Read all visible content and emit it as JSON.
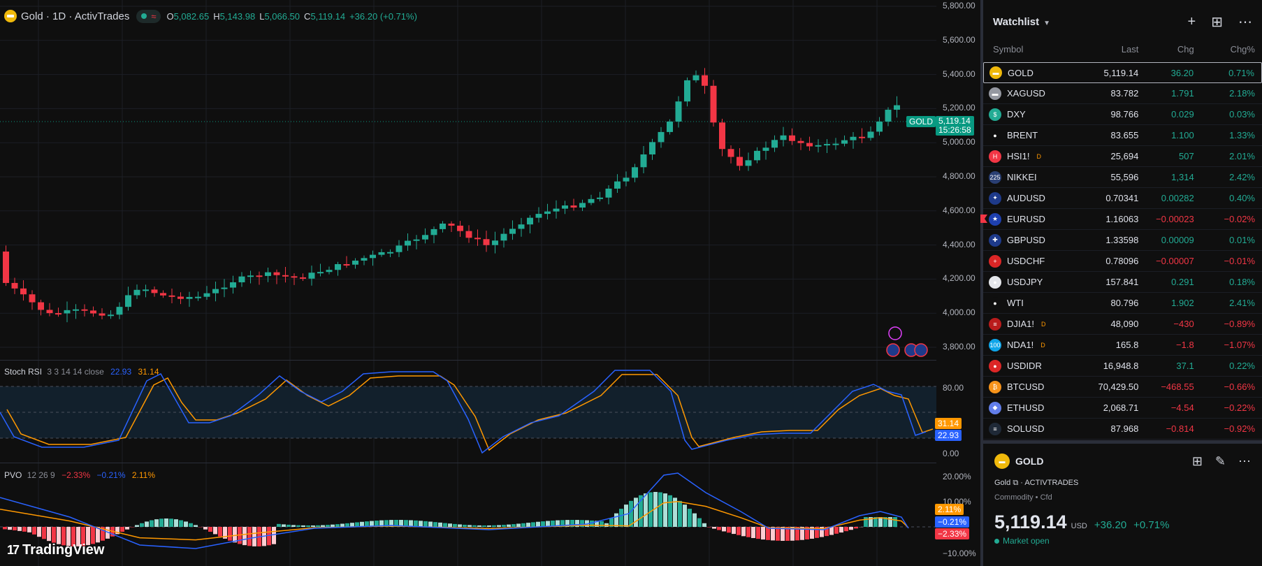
{
  "legend": {
    "title": "Gold · 1D · ActivTrades",
    "o_key": "O",
    "o": "5,082.65",
    "h_key": "H",
    "h": "5,143.98",
    "l_key": "L",
    "l": "5,066.50",
    "c_key": "C",
    "c": "5,119.14",
    "chg": "+36.20 (+0.71%)",
    "wave_icon": "≈"
  },
  "price_axis": {
    "labels": [
      "5,800.00",
      "5,600.00",
      "5,400.00",
      "5,200.00",
      "5,000.00",
      "4,800.00",
      "4,600.00",
      "4,400.00",
      "4,200.00",
      "4,000.00",
      "3,800.00"
    ],
    "last_tag_symbol": "GOLD",
    "last_price": "5,119.14",
    "countdown": "15:26:58"
  },
  "stoch": {
    "name": "Stoch RSI",
    "params": "3 3 14 14 close",
    "k": "22.93",
    "d": "31.14",
    "axis": [
      "80.00",
      "0.00"
    ]
  },
  "pvo": {
    "name": "PVO",
    "params": "12 26 9",
    "v1": "−2.33%",
    "v2": "−0.21%",
    "v3": "2.11%",
    "axis": [
      "20.00%",
      "10.00%",
      "−10.00%"
    ]
  },
  "branding": {
    "logo": "TradingView"
  },
  "colors": {
    "up": "#22ab94",
    "down": "#f23645",
    "blue": "#2962ff",
    "orange": "#ff9800"
  },
  "watchlist": {
    "title": "Watchlist",
    "columns": [
      "Symbol",
      "Last",
      "Chg",
      "Chg%"
    ],
    "rows": [
      {
        "symbol": "GOLD",
        "last": "5,119.14",
        "chg": "36.20",
        "pct": "0.71%",
        "dir": "pos",
        "icon": "gold-icon",
        "bg": "#f0b90b",
        "glyph": "▬"
      },
      {
        "symbol": "XAGUSD",
        "last": "83.782",
        "chg": "1.791",
        "pct": "2.18%",
        "dir": "pos",
        "icon": "silver-icon",
        "bg": "#9598a1",
        "glyph": "▬"
      },
      {
        "symbol": "DXY",
        "last": "98.766",
        "chg": "0.029",
        "pct": "0.03%",
        "dir": "pos",
        "icon": "dollar-icon",
        "bg": "#22ab94",
        "glyph": "$"
      },
      {
        "symbol": "BRENT",
        "last": "83.655",
        "chg": "1.100",
        "pct": "1.33%",
        "dir": "pos",
        "icon": "oil-drop-icon",
        "bg": "#0f0f0f",
        "glyph": "●"
      },
      {
        "symbol": "HSI1!",
        "last": "25,694",
        "chg": "507",
        "pct": "2.01%",
        "dir": "pos",
        "icon": "hsi-icon",
        "bg": "#f23645",
        "glyph": "H",
        "sup": "D"
      },
      {
        "symbol": "NIKKEI",
        "last": "55,596",
        "chg": "1,314",
        "pct": "2.42%",
        "dir": "pos",
        "icon": "nikkei-icon",
        "bg": "#2a3f73",
        "glyph": "225"
      },
      {
        "symbol": "AUDUSD",
        "last": "0.70341",
        "chg": "0.00282",
        "pct": "0.40%",
        "dir": "pos",
        "icon": "aud-flag-icon",
        "bg": "#1e3a8a",
        "glyph": "✦"
      },
      {
        "symbol": "EURUSD",
        "last": "1.16063",
        "chg": "−0.00023",
        "pct": "−0.02%",
        "dir": "neg",
        "icon": "eur-flag-icon",
        "bg": "#1e40af",
        "glyph": "★",
        "flagged": "true"
      },
      {
        "symbol": "GBPUSD",
        "last": "1.33598",
        "chg": "0.00009",
        "pct": "0.01%",
        "dir": "pos",
        "icon": "gbp-flag-icon",
        "bg": "#1e3a8a",
        "glyph": "✚"
      },
      {
        "symbol": "USDCHF",
        "last": "0.78096",
        "chg": "−0.00007",
        "pct": "−0.01%",
        "dir": "neg",
        "icon": "chf-flag-icon",
        "bg": "#dc2626",
        "glyph": "+"
      },
      {
        "symbol": "USDJPY",
        "last": "157.841",
        "chg": "0.291",
        "pct": "0.18%",
        "dir": "pos",
        "last_dir": "neg",
        "icon": "jpy-flag-icon",
        "bg": "#e5e7eb",
        "glyph": "●"
      },
      {
        "symbol": "WTI",
        "last": "80.796",
        "chg": "1.902",
        "pct": "2.41%",
        "dir": "pos",
        "icon": "oil-drop-icon",
        "bg": "#0f0f0f",
        "glyph": "●"
      },
      {
        "symbol": "DJIA1!",
        "last": "48,090",
        "chg": "−430",
        "pct": "−0.89%",
        "dir": "neg",
        "icon": "us-flag-icon",
        "bg": "#b91c1c",
        "glyph": "≡",
        "sup": "D"
      },
      {
        "symbol": "NDA1!",
        "last": "165.8",
        "chg": "−1.8",
        "pct": "−1.07%",
        "dir": "neg",
        "icon": "nda-icon",
        "bg": "#0ea5e9",
        "glyph": "100",
        "sup": "D"
      },
      {
        "symbol": "USDIDR",
        "last": "16,948.8",
        "chg": "37.1",
        "pct": "0.22%",
        "dir": "pos",
        "icon": "idr-flag-icon",
        "bg": "#dc2626",
        "glyph": "●"
      },
      {
        "symbol": "BTCUSD",
        "last": "70,429.50",
        "chg": "−468.55",
        "pct": "−0.66%",
        "dir": "neg",
        "icon": "bitcoin-icon",
        "bg": "#f7931a",
        "glyph": "₿"
      },
      {
        "symbol": "ETHUSD",
        "last": "2,068.71",
        "chg": "−4.54",
        "pct": "−0.22%",
        "dir": "neg",
        "icon": "ethereum-icon",
        "bg": "#627eea",
        "glyph": "◆"
      },
      {
        "symbol": "SOLUSD",
        "last": "87.968",
        "chg": "−0.814",
        "pct": "−0.92%",
        "dir": "neg",
        "icon": "solana-icon",
        "bg": "#1f2937",
        "glyph": "≡"
      }
    ]
  },
  "detail": {
    "name": "GOLD",
    "full_name": "Gold",
    "exchange": "ACTIVTRADES",
    "category": "Commodity",
    "sub_category": "Cfd",
    "price": "5,119.14",
    "currency": "USD",
    "change": "+36.20",
    "change_pct": "+0.71%",
    "status": "Market open"
  }
}
